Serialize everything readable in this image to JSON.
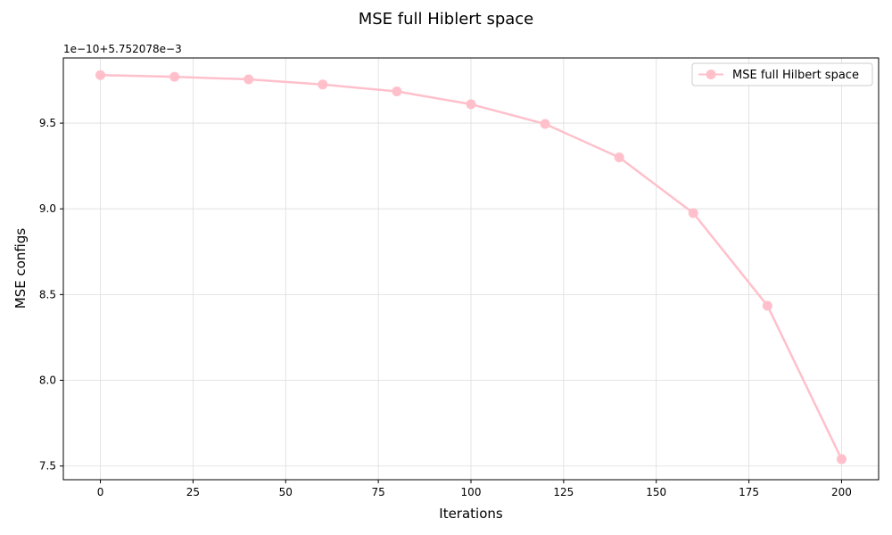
{
  "chart_data": {
    "type": "line",
    "title": "MSE full Hiblert space",
    "xlabel": "Iterations",
    "ylabel": "MSE configs",
    "y_offset_text": "1e−10+5.752078e−3",
    "xlim": [
      -10,
      210
    ],
    "ylim": [
      7.42,
      9.88
    ],
    "x_ticks": [
      0,
      25,
      50,
      75,
      100,
      125,
      150,
      175,
      200
    ],
    "y_ticks": [
      7.5,
      8.0,
      8.5,
      9.0,
      9.5
    ],
    "y_tick_labels": [
      "7.5",
      "8.0",
      "8.5",
      "9.0",
      "9.5"
    ],
    "grid": true,
    "legend_position": "top-right",
    "series": [
      {
        "name": "MSE full Hilbert space",
        "color": "#ffc0cb",
        "marker": "circle",
        "x": [
          0,
          20,
          40,
          60,
          80,
          100,
          120,
          140,
          160,
          180,
          200
        ],
        "y": [
          9.78,
          9.77,
          9.755,
          9.725,
          9.685,
          9.61,
          9.495,
          9.3,
          8.975,
          8.435,
          7.54
        ]
      }
    ]
  }
}
